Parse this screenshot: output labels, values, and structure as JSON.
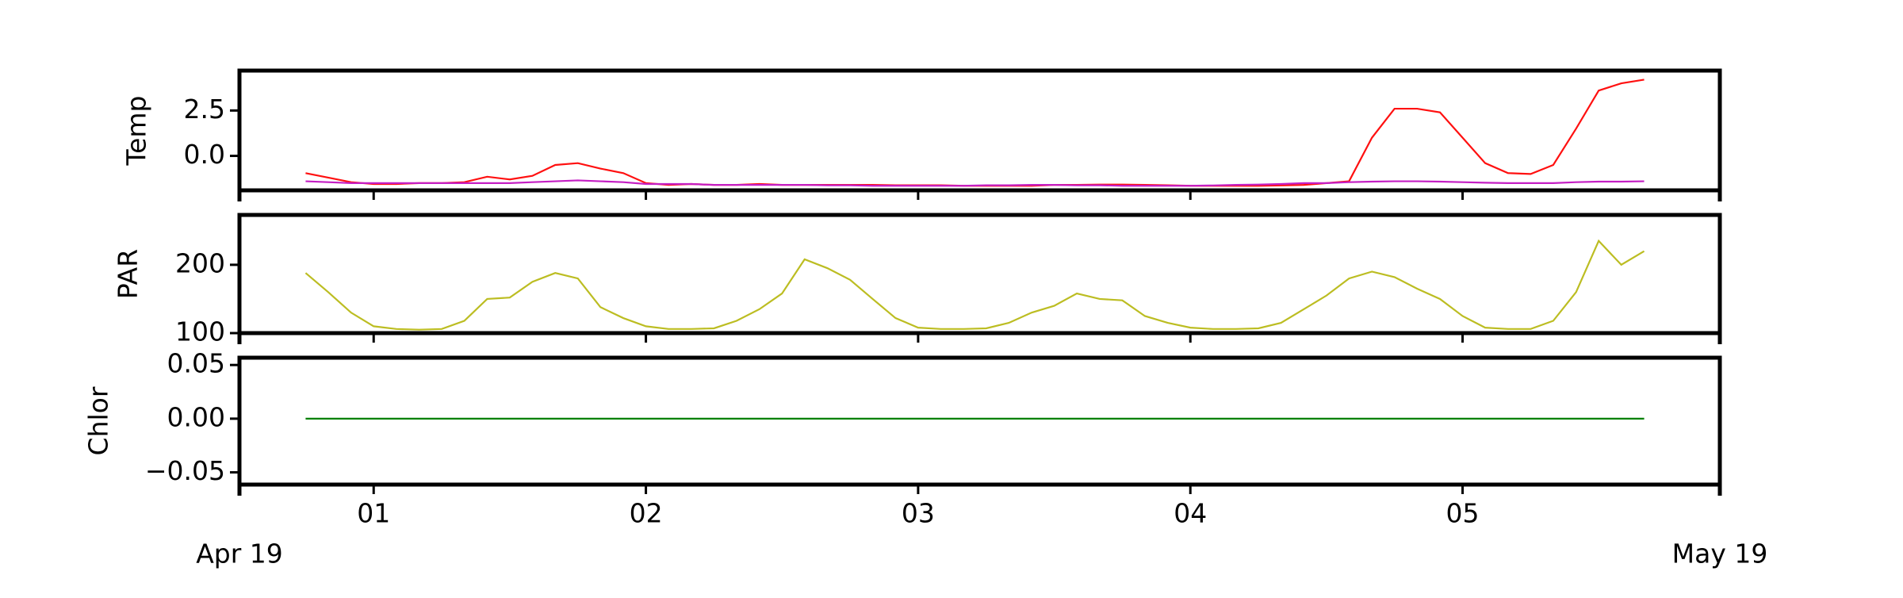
{
  "chart_data": [
    {
      "type": "line",
      "ylabel": "Temp",
      "xlim": [
        0.507,
        5.945
      ],
      "xticks": [
        1,
        2,
        3,
        4,
        5
      ],
      "ylim": [
        -1.9,
        4.7
      ],
      "yticks": [
        {
          "value": 0,
          "label": "0.0"
        },
        {
          "value": 2.5,
          "label": "2.5"
        }
      ],
      "x": [
        0.75,
        0.833,
        0.917,
        1,
        1.083,
        1.167,
        1.25,
        1.333,
        1.417,
        1.5,
        1.583,
        1.667,
        1.75,
        1.833,
        1.917,
        2,
        2.083,
        2.167,
        2.25,
        2.333,
        2.417,
        2.5,
        2.583,
        2.667,
        2.75,
        2.833,
        2.917,
        3,
        3.083,
        3.167,
        3.25,
        3.333,
        3.417,
        3.5,
        3.583,
        3.667,
        3.75,
        3.833,
        3.917,
        4,
        4.083,
        4.167,
        4.25,
        4.333,
        4.417,
        4.5,
        4.583,
        4.667,
        4.75,
        4.833,
        4.917,
        5,
        5.083,
        5.167,
        5.25,
        5.333,
        5.417,
        5.5,
        5.583,
        5.667
      ],
      "series": [
        {
          "color": "#ff1010",
          "values": [
            -0.95,
            -1.2,
            -1.45,
            -1.55,
            -1.55,
            -1.5,
            -1.5,
            -1.45,
            -1.15,
            -1.3,
            -1.1,
            -0.5,
            -0.4,
            -0.7,
            -0.95,
            -1.5,
            -1.6,
            -1.55,
            -1.6,
            -1.6,
            -1.55,
            -1.6,
            -1.6,
            -1.6,
            -1.6,
            -1.6,
            -1.62,
            -1.62,
            -1.62,
            -1.65,
            -1.65,
            -1.65,
            -1.65,
            -1.6,
            -1.6,
            -1.58,
            -1.58,
            -1.6,
            -1.62,
            -1.65,
            -1.65,
            -1.65,
            -1.65,
            -1.63,
            -1.6,
            -1.5,
            -1.4,
            1.0,
            2.6,
            2.6,
            2.4,
            1.0,
            -0.4,
            -0.95,
            -1.0,
            -0.5,
            1.5,
            3.6,
            4.0,
            4.2
          ]
        },
        {
          "color": "#c41fc4",
          "values": [
            -1.4,
            -1.45,
            -1.5,
            -1.5,
            -1.5,
            -1.5,
            -1.5,
            -1.5,
            -1.5,
            -1.5,
            -1.45,
            -1.4,
            -1.35,
            -1.4,
            -1.45,
            -1.55,
            -1.55,
            -1.55,
            -1.6,
            -1.6,
            -1.6,
            -1.6,
            -1.6,
            -1.62,
            -1.62,
            -1.65,
            -1.65,
            -1.65,
            -1.65,
            -1.65,
            -1.62,
            -1.62,
            -1.6,
            -1.6,
            -1.62,
            -1.62,
            -1.65,
            -1.65,
            -1.65,
            -1.65,
            -1.63,
            -1.6,
            -1.58,
            -1.55,
            -1.5,
            -1.5,
            -1.45,
            -1.42,
            -1.4,
            -1.4,
            -1.42,
            -1.45,
            -1.48,
            -1.5,
            -1.5,
            -1.5,
            -1.45,
            -1.42,
            -1.42,
            -1.4
          ]
        }
      ]
    },
    {
      "type": "line",
      "ylabel": "PAR",
      "xlim": [
        0.507,
        5.945
      ],
      "xticks": [
        1,
        2,
        3,
        4,
        5
      ],
      "ylim": [
        100,
        273
      ],
      "yticks": [
        100,
        200
      ],
      "x": [
        0.75,
        0.833,
        0.917,
        1,
        1.083,
        1.167,
        1.25,
        1.333,
        1.417,
        1.5,
        1.583,
        1.667,
        1.75,
        1.833,
        1.917,
        2,
        2.083,
        2.167,
        2.25,
        2.333,
        2.417,
        2.5,
        2.583,
        2.667,
        2.75,
        2.833,
        2.917,
        3,
        3.083,
        3.167,
        3.25,
        3.333,
        3.417,
        3.5,
        3.583,
        3.667,
        3.75,
        3.833,
        3.917,
        4,
        4.083,
        4.167,
        4.25,
        4.333,
        4.417,
        4.5,
        4.583,
        4.667,
        4.75,
        4.833,
        4.917,
        5,
        5.083,
        5.167,
        5.25,
        5.333,
        5.417,
        5.5,
        5.583,
        5.667
      ],
      "series": [
        {
          "color": "#bcbd22",
          "values": [
            188,
            160,
            130,
            110,
            106,
            105,
            106,
            118,
            150,
            152,
            175,
            188,
            180,
            138,
            122,
            110,
            106,
            106,
            107,
            118,
            135,
            158,
            208,
            195,
            178,
            150,
            122,
            108,
            106,
            106,
            107,
            115,
            130,
            140,
            158,
            150,
            148,
            125,
            115,
            108,
            106,
            106,
            107,
            115,
            135,
            155,
            180,
            190,
            182,
            165,
            150,
            125,
            108,
            106,
            106,
            118,
            160,
            235,
            200,
            220
          ]
        }
      ]
    },
    {
      "type": "line",
      "ylabel": "Chlor",
      "xlim": [
        0.507,
        5.945
      ],
      "xticks": [
        {
          "value": 1,
          "label": "01"
        },
        {
          "value": 2,
          "label": "02"
        },
        {
          "value": 3,
          "label": "03"
        },
        {
          "value": 4,
          "label": "04"
        },
        {
          "value": 5,
          "label": "05"
        }
      ],
      "xlabel_left": "Apr 19",
      "xlabel_right": "May 19",
      "ylim": [
        -0.0614,
        0.0568
      ],
      "yticks": [
        {
          "value": -0.05,
          "label": "−0.05"
        },
        {
          "value": 0,
          "label": "0.00"
        },
        {
          "value": 0.05,
          "label": "0.05"
        }
      ],
      "x": [
        0.75,
        0.833,
        0.917,
        1,
        1.083,
        1.167,
        1.25,
        1.333,
        1.417,
        1.5,
        1.583,
        1.667,
        1.75,
        1.833,
        1.917,
        2,
        2.083,
        2.167,
        2.25,
        2.333,
        2.417,
        2.5,
        2.583,
        2.667,
        2.75,
        2.833,
        2.917,
        3,
        3.083,
        3.167,
        3.25,
        3.333,
        3.417,
        3.5,
        3.583,
        3.667,
        3.75,
        3.833,
        3.917,
        4,
        4.083,
        4.167,
        4.25,
        4.333,
        4.417,
        4.5,
        4.583,
        4.667,
        4.75,
        4.833,
        4.917,
        5,
        5.083,
        5.167,
        5.25,
        5.333,
        5.417,
        5.5,
        5.583,
        5.667
      ],
      "series": [
        {
          "color": "#008000",
          "values": [
            0,
            0,
            0,
            0,
            0,
            0,
            0,
            0,
            0,
            0,
            0,
            0,
            0,
            0,
            0,
            0,
            0,
            0,
            0,
            0,
            0,
            0,
            0,
            0,
            0,
            0,
            0,
            0,
            0,
            0,
            0,
            0,
            0,
            0,
            0,
            0,
            0,
            0,
            0,
            0,
            0,
            0,
            0,
            0,
            0,
            0,
            0,
            0,
            0,
            0,
            0,
            0,
            0,
            0,
            0,
            0,
            0,
            0,
            0,
            0
          ]
        }
      ]
    }
  ]
}
